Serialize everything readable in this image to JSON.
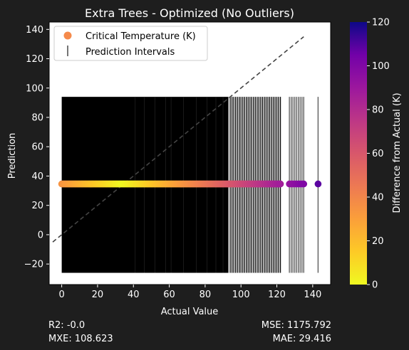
{
  "chart_data": {
    "type": "scatter",
    "title": "Extra Trees - Optimized (No Outliers)",
    "xlabel": "Actual Value",
    "ylabel": "Prediction",
    "xlim": [
      -7,
      150
    ],
    "ylim": [
      -34,
      145
    ],
    "xticks": [
      0,
      20,
      40,
      60,
      80,
      100,
      120,
      140
    ],
    "yticks": [
      -20,
      0,
      20,
      40,
      60,
      80,
      100,
      120,
      140
    ],
    "grid": false,
    "legend_placement": "top-left",
    "series": [
      {
        "name": "Critical Temperature (K)",
        "kind": "scatter",
        "prediction": 34.6,
        "x": [
          0,
          0.5,
          1,
          1.5,
          2,
          2.5,
          3,
          3.5,
          4,
          4.5,
          5,
          5.5,
          6,
          6.5,
          7,
          7.5,
          8,
          8.5,
          9,
          9.5,
          10,
          10.5,
          11,
          11.5,
          12,
          12.5,
          13,
          13.5,
          14,
          14.5,
          15,
          15.5,
          16,
          16.5,
          17,
          17.5,
          18,
          18.5,
          19,
          19.5,
          20,
          20.5,
          21,
          21.5,
          22,
          22.5,
          23,
          23.5,
          24,
          24.5,
          25,
          25.5,
          26,
          26.5,
          27,
          27.5,
          28,
          28.5,
          29,
          29.5,
          30,
          30.5,
          31,
          31.5,
          32,
          32.5,
          33,
          33.5,
          34,
          34.5,
          35,
          35.5,
          36,
          36.5,
          37,
          37.5,
          38,
          38.5,
          39,
          39.5,
          40,
          40.5,
          41,
          41.5,
          42,
          42.5,
          43,
          43.5,
          44,
          44.5,
          45,
          45.5,
          46,
          46.5,
          47,
          47.5,
          48,
          48.5,
          49,
          49.5,
          50,
          50.5,
          51,
          51.5,
          52,
          52.5,
          53,
          53.5,
          54,
          54.5,
          55,
          55.5,
          56,
          56.5,
          57,
          57.5,
          58,
          58.5,
          59,
          59.5,
          60,
          60.5,
          61,
          61.5,
          62,
          62.5,
          63,
          63.5,
          64,
          64.5,
          65,
          65.5,
          66,
          66.5,
          67,
          67.5,
          68,
          68.5,
          69,
          69.5,
          70,
          70.5,
          71,
          71.5,
          72,
          72.5,
          73,
          73.5,
          74,
          74.5,
          75,
          75.5,
          76,
          76.5,
          77,
          77.5,
          78,
          78.5,
          79,
          79.5,
          80,
          80.5,
          81,
          81.5,
          82,
          82.5,
          83,
          83.5,
          84,
          84.5,
          85,
          85.5,
          86,
          86.5,
          87,
          87.5,
          88,
          88.5,
          89,
          89.5,
          90,
          90.5,
          91,
          91.5,
          92,
          92.5,
          93,
          93.5,
          94,
          94.5,
          95,
          95.5,
          96,
          96.5,
          97,
          97.5,
          98,
          98.5,
          99,
          99.5,
          100,
          100.5,
          101,
          101.5,
          102,
          102.5,
          103,
          103.5,
          104,
          104.5,
          105,
          105.5,
          106,
          106.5,
          107,
          107.5,
          108,
          108.5,
          109,
          109.5,
          110,
          110.5,
          111,
          111.5,
          112,
          112.5,
          113,
          113.5,
          114,
          114.5,
          115,
          115.5,
          116,
          116.5,
          117,
          117.5,
          118,
          118.5,
          119,
          119.5,
          120,
          120.5,
          121,
          121.5,
          122,
          127,
          128,
          129,
          130,
          131,
          132,
          133,
          134,
          135,
          143
        ]
      },
      {
        "name": "Prediction Intervals",
        "kind": "errorbar",
        "lower": -26,
        "upper": 94,
        "x_dense_range": [
          0,
          93
        ],
        "x_sparse": [
          94,
          95,
          96,
          97,
          98,
          99,
          100,
          101,
          102,
          103,
          104,
          105,
          106,
          107,
          108,
          109,
          110,
          111,
          112,
          113,
          114,
          115,
          116,
          117,
          118,
          119,
          120,
          121,
          122,
          127,
          128,
          129,
          130,
          131,
          132,
          133,
          134,
          135,
          143
        ]
      }
    ],
    "reference_line": {
      "style": "dashed",
      "from": [
        -5,
        -5
      ],
      "to": [
        135,
        135
      ]
    },
    "colorbar": {
      "label": "Difference from Actual (K)",
      "range": [
        0,
        120
      ],
      "ticks": [
        0,
        20,
        40,
        60,
        80,
        100,
        120
      ],
      "colormap": "plasma_r"
    },
    "colors": {
      "background": "#1e1e1e",
      "plot_area": "#ffffff",
      "interval_line": "#000000",
      "reference_line": "#444444",
      "legend_marker": "#f58a4b"
    }
  },
  "metrics": {
    "r2": "R2: -0.0",
    "mxe": "MXE: 108.623",
    "mse": "MSE: 1175.792",
    "mae": "MAE: 29.416"
  }
}
